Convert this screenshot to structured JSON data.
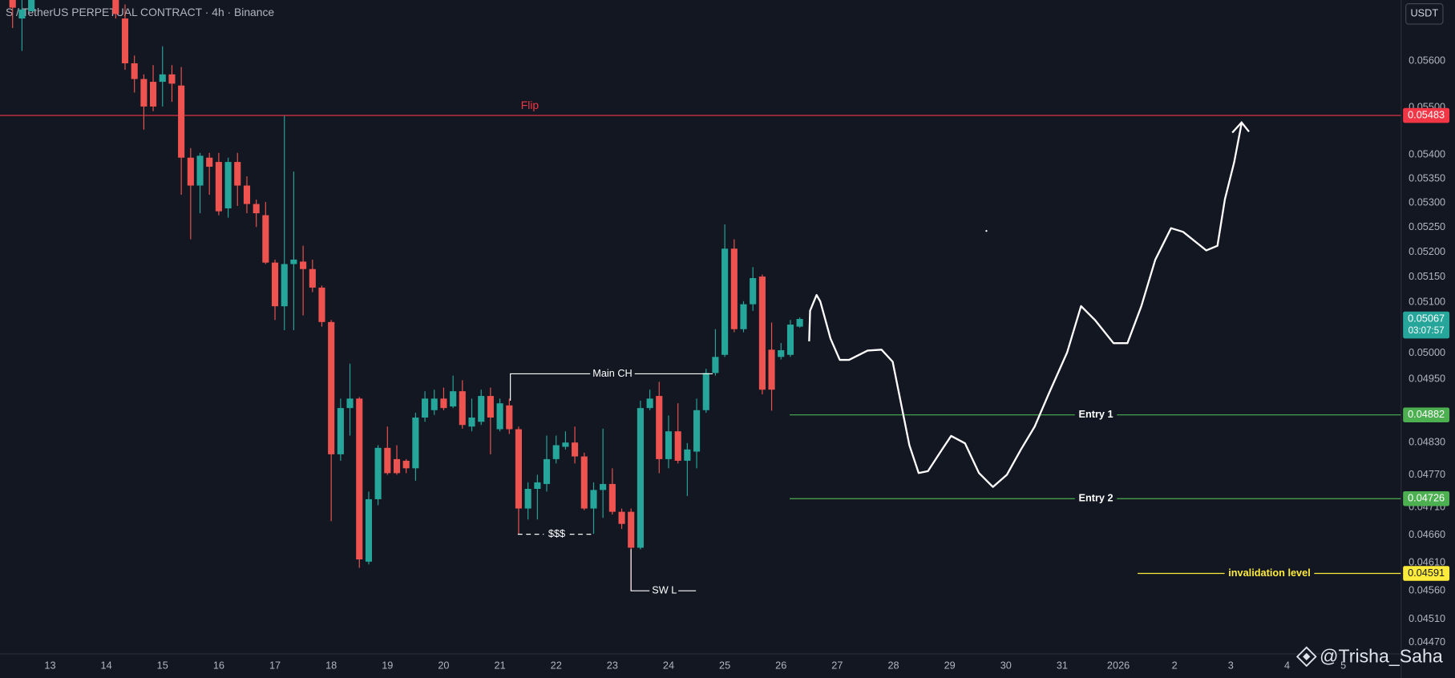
{
  "chart_data": {
    "type": "candlestick",
    "title": "S  / TetherUS PERPETUAL CONTRACT · 4h · Binance",
    "log_scale": true,
    "grid": false,
    "up_color": "#26a69a",
    "down_color": "#ef5350",
    "currency": "USDT",
    "x": [
      12.333,
      12.5,
      12.667,
      14.167,
      14.333,
      14.5,
      14.667,
      14.833,
      15,
      15.167,
      15.333,
      15.5,
      15.667,
      15.833,
      16,
      16.167,
      16.333,
      16.5,
      16.667,
      16.833,
      17,
      17.167,
      17.333,
      17.5,
      17.667,
      17.833,
      18,
      18.167,
      18.333,
      18.5,
      18.667,
      18.833,
      19,
      19.167,
      19.333,
      19.5,
      19.667,
      19.833,
      20,
      20.167,
      20.333,
      20.5,
      20.667,
      20.833,
      21,
      21.167,
      21.333,
      21.5,
      21.667,
      21.833,
      22,
      22.167,
      22.333,
      22.5,
      22.667,
      22.833,
      23,
      23.167,
      23.333,
      23.5,
      23.667,
      23.833,
      24,
      24.167,
      24.333,
      24.5,
      24.667,
      24.833,
      25,
      25.167,
      25.333,
      25.5,
      25.667,
      25.833,
      26,
      26.167,
      26.333
    ],
    "open": [
      0.05734,
      0.05693,
      0.05709,
      0.05734,
      0.05693,
      0.05595,
      0.05561,
      0.05555,
      0.05555,
      0.05571,
      0.05547,
      0.05394,
      0.05336,
      0.05394,
      0.05385,
      0.05289,
      0.05385,
      0.05336,
      0.05298,
      0.05275,
      0.05179,
      0.05092,
      0.05176,
      0.05181,
      0.05166,
      0.05129,
      0.05061,
      0.04808,
      0.04895,
      0.04913,
      0.04612,
      0.04725,
      0.0482,
      0.04799,
      0.04796,
      0.04782,
      0.04877,
      0.04891,
      0.04913,
      0.04898,
      0.04927,
      0.0486,
      0.04869,
      0.04918,
      0.04855,
      0.049,
      0.04855,
      0.04708,
      0.04744,
      0.04753,
      0.04799,
      0.04822,
      0.0483,
      0.04804,
      0.04708,
      0.04742,
      0.04753,
      0.04702,
      0.04702,
      0.04637,
      0.04895,
      0.04918,
      0.04799,
      0.04851,
      0.04796,
      0.04813,
      0.04891,
      0.04962,
      0.04997,
      0.05207,
      0.05047,
      0.05096,
      0.05151,
      0.05007,
      0.04993,
      0.04997,
      0.05052
    ],
    "high": [
      0.05734,
      0.05734,
      0.05734,
      0.05734,
      0.05724,
      0.05612,
      0.05571,
      0.05591,
      0.05632,
      0.05591,
      0.05587,
      0.05414,
      0.05404,
      0.05404,
      0.05404,
      0.05394,
      0.05404,
      0.05355,
      0.05307,
      0.05302,
      0.05185,
      0.05482,
      0.05365,
      0.05213,
      0.05185,
      0.05133,
      0.05065,
      0.04913,
      0.0498,
      0.04916,
      0.04739,
      0.04825,
      0.0486,
      0.04825,
      0.04799,
      0.04886,
      0.04927,
      0.0493,
      0.04934,
      0.04957,
      0.04948,
      0.04913,
      0.0493,
      0.04934,
      0.04913,
      0.04913,
      0.0486,
      0.04756,
      0.0477,
      0.04843,
      0.04843,
      0.04851,
      0.0486,
      0.04811,
      0.04756,
      0.04856,
      0.04782,
      0.04708,
      0.04708,
      0.04909,
      0.0493,
      0.04945,
      0.04881,
      0.04904,
      0.04829,
      0.04913,
      0.0497,
      0.05047,
      0.05256,
      0.05226,
      0.05102,
      0.0517,
      0.05155,
      0.0506,
      0.0502,
      0.05065,
      0.0507
    ],
    "low": [
      0.05672,
      0.05622,
      0.05709,
      0.05693,
      0.05581,
      0.05532,
      0.05453,
      0.05492,
      0.05502,
      0.05512,
      0.05317,
      0.05226,
      0.05279,
      0.05317,
      0.05275,
      0.0527,
      0.05294,
      0.05279,
      0.05251,
      0.05176,
      0.05065,
      0.05045,
      0.05045,
      0.05074,
      0.0512,
      0.05052,
      0.04685,
      0.04796,
      0.04843,
      0.04601,
      0.04607,
      0.04714,
      0.0477,
      0.0477,
      0.04773,
      0.04759,
      0.04869,
      0.04882,
      0.04891,
      0.04895,
      0.04856,
      0.04851,
      0.04863,
      0.04808,
      0.04851,
      0.04846,
      0.04662,
      0.04688,
      0.04688,
      0.04739,
      0.04791,
      0.04817,
      0.04791,
      0.04705,
      0.04662,
      0.04691,
      0.04697,
      0.04671,
      0.0456,
      0.04634,
      0.04891,
      0.04773,
      0.04782,
      0.04791,
      0.04731,
      0.04782,
      0.04886,
      0.04957,
      0.04993,
      0.05041,
      0.05041,
      0.05083,
      0.04921,
      0.0489,
      0.04988,
      0.04993,
      0.0505
    ],
    "close": [
      0.05717,
      0.05713,
      0.05734,
      0.05703,
      0.05595,
      0.05561,
      0.05502,
      0.05502,
      0.05571,
      0.05551,
      0.05394,
      0.05336,
      0.05398,
      0.05375,
      0.05283,
      0.05385,
      0.05336,
      0.05298,
      0.05279,
      0.05179,
      0.05092,
      0.05176,
      0.05185,
      0.05166,
      0.05129,
      0.05061,
      0.04808,
      0.04895,
      0.04913,
      0.04616,
      0.04725,
      0.0482,
      0.04773,
      0.04773,
      0.04782,
      0.04877,
      0.04913,
      0.04913,
      0.04895,
      0.04927,
      0.04863,
      0.04877,
      0.04918,
      0.04877,
      0.04904,
      0.04855,
      0.04708,
      0.04744,
      0.04756,
      0.04799,
      0.04825,
      0.0483,
      0.04804,
      0.04708,
      0.04742,
      0.04753,
      0.04702,
      0.0468,
      0.04637,
      0.04895,
      0.04913,
      0.04799,
      0.04851,
      0.04796,
      0.04817,
      0.04891,
      0.04962,
      0.04993,
      0.05207,
      0.05047,
      0.05096,
      0.05148,
      0.0493,
      0.0493,
      0.05006,
      0.05056,
      0.05067
    ],
    "xlim": [
      12.109,
      37.03
    ],
    "xticks": [
      13,
      14,
      15,
      16,
      17,
      18,
      19,
      20,
      21,
      22,
      23,
      24,
      25,
      26,
      27,
      28,
      29,
      30,
      31,
      {
        "value": 32,
        "label": "2026"
      },
      {
        "value": 33,
        "label": "2"
      },
      {
        "value": 34,
        "label": "3"
      },
      {
        "value": 35,
        "label": "4"
      },
      {
        "value": 36,
        "label": "5"
      }
    ],
    "ylim": [
      0.0445,
      0.05734
    ],
    "yticks": [
      {
        "value": 0.056,
        "label": "0.05600"
      },
      {
        "value": 0.055,
        "label": "0.05500"
      },
      {
        "value": 0.054,
        "label": "0.05400"
      },
      {
        "value": 0.0535,
        "label": "0.05350"
      },
      {
        "value": 0.053,
        "label": "0.05300"
      },
      {
        "value": 0.0525,
        "label": "0.05250"
      },
      {
        "value": 0.052,
        "label": "0.05200"
      },
      {
        "value": 0.0515,
        "label": "0.05150"
      },
      {
        "value": 0.051,
        "label": "0.05100"
      },
      {
        "value": 0.05,
        "label": "0.05000"
      },
      {
        "value": 0.0495,
        "label": "0.04950"
      },
      {
        "value": 0.0483,
        "label": "0.04830"
      },
      {
        "value": 0.0477,
        "label": "0.04770"
      },
      {
        "value": 0.0471,
        "label": "0.04710"
      },
      {
        "value": 0.0466,
        "label": "0.04660"
      },
      {
        "value": 0.0461,
        "label": "0.04610"
      },
      {
        "value": 0.0456,
        "label": "0.04560"
      },
      {
        "value": 0.0451,
        "label": "0.04510"
      },
      {
        "value": 0.0447,
        "label": "0.04470"
      }
    ],
    "levels": [
      {
        "name": "Flip",
        "value": 0.05483,
        "color": "#f23645"
      },
      {
        "name": "Entry 1",
        "value": 0.04882,
        "color": "#4caf50"
      },
      {
        "name": "Entry 2",
        "value": 0.04726,
        "color": "#4caf50"
      },
      {
        "name": "invalidation level",
        "value": 0.04591,
        "color": "#ffeb3b"
      }
    ],
    "current_price": {
      "value": 0.05067,
      "countdown": "03:07:57"
    },
    "annotations": [
      "Main CH",
      "$$$",
      "SW L"
    ],
    "watermark": "@Trisha_Saha"
  }
}
